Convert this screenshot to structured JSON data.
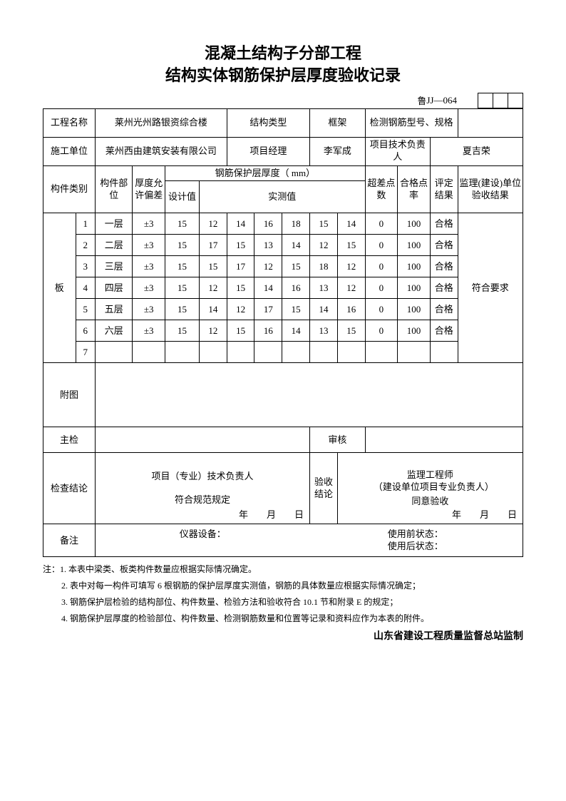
{
  "title_line1": "混凝土结构子分部工程",
  "title_line2": "结构实体钢筋保护层厚度验收记录",
  "form_prefix": "鲁",
  "form_code": "JJ—064",
  "info": {
    "proj_name_label": "工程名称",
    "proj_name": "莱州光州路银资综合楼",
    "struct_type_label": "结构类型",
    "struct_type": "框架",
    "rebar_spec_label": "检测钢筋型号、规格",
    "rebar_spec": "",
    "contractor_label": "施工单位",
    "contractor": "莱州西由建筑安装有限公司",
    "pm_label": "项目经理",
    "pm": "李军成",
    "tech_lead_label": "项目技术负责人",
    "tech_lead": "夏吉荣"
  },
  "headers": {
    "component_type": "构件类别",
    "component_part": "构件部位",
    "tolerance": "厚度允许偏差",
    "cover_group": "钢筋保护层厚度（ mm）",
    "design": "设计值",
    "measured": "实测值",
    "exceed": "超差点数",
    "pass_rate": "合格点率",
    "verdict": "评定结果",
    "supervisor": "监理(建设)单位验收结果"
  },
  "component_type_value": "板",
  "rows": [
    {
      "no": "1",
      "part": "一层",
      "tol": "±3",
      "design": "15",
      "m": [
        "12",
        "14",
        "16",
        "18",
        "15",
        "14"
      ],
      "ex": "0",
      "rate": "100",
      "res": "合格"
    },
    {
      "no": "2",
      "part": "二层",
      "tol": "±3",
      "design": "15",
      "m": [
        "17",
        "15",
        "13",
        "14",
        "12",
        "15"
      ],
      "ex": "0",
      "rate": "100",
      "res": "合格"
    },
    {
      "no": "3",
      "part": "三层",
      "tol": "±3",
      "design": "15",
      "m": [
        "15",
        "17",
        "12",
        "15",
        "18",
        "12"
      ],
      "ex": "0",
      "rate": "100",
      "res": "合格"
    },
    {
      "no": "4",
      "part": "四层",
      "tol": "±3",
      "design": "15",
      "m": [
        "12",
        "15",
        "14",
        "16",
        "13",
        "12"
      ],
      "ex": "0",
      "rate": "100",
      "res": "合格"
    },
    {
      "no": "5",
      "part": "五层",
      "tol": "±3",
      "design": "15",
      "m": [
        "14",
        "12",
        "17",
        "15",
        "14",
        "16"
      ],
      "ex": "0",
      "rate": "100",
      "res": "合格"
    },
    {
      "no": "6",
      "part": "六层",
      "tol": "±3",
      "design": "15",
      "m": [
        "12",
        "15",
        "16",
        "14",
        "13",
        "15"
      ],
      "ex": "0",
      "rate": "100",
      "res": "合格"
    },
    {
      "no": "7",
      "part": "",
      "tol": "",
      "design": "",
      "m": [
        "",
        "",
        "",
        "",
        "",
        ""
      ],
      "ex": "",
      "rate": "",
      "res": ""
    }
  ],
  "supervisor_result": "符合要求",
  "attachment_label": "附图",
  "main_check_label": "主检",
  "review_label": "审核",
  "check_concl_label": "检查结论",
  "check_concl_head": "项目（专业）技术负责人",
  "check_concl_body": "符合规范规定",
  "accept_concl_label": "验收结论",
  "accept_concl_head": "监理工程师",
  "accept_concl_sub": "（建设单位项目专业负责人）",
  "accept_concl_body": "同意验收",
  "date_str": "年　　月　　日",
  "remark_label": "备注",
  "remark_equip": "仪器设备：",
  "remark_before": "使用前状态：",
  "remark_after": "使用后状态：",
  "notes_prefix": "注：",
  "notes": [
    "1. 本表中梁类、板类构件数量应根据实际情况确定。",
    "2. 表中对每一构件可填写 6 根钢筋的保护层厚度实测值，钢筋的具体数量应根据实际情况确定；",
    "3. 钢筋保护层检验的结构部位、构件数量、检验方法和验收符合 10.1 节和附录 E 的规定；",
    "4. 钢筋保护层厚度的检验部位、构件数量、检测钢筋数量和位置等记录和资料应作为本表的附件。"
  ],
  "footer": "山东省建设工程质量监督总站监制"
}
